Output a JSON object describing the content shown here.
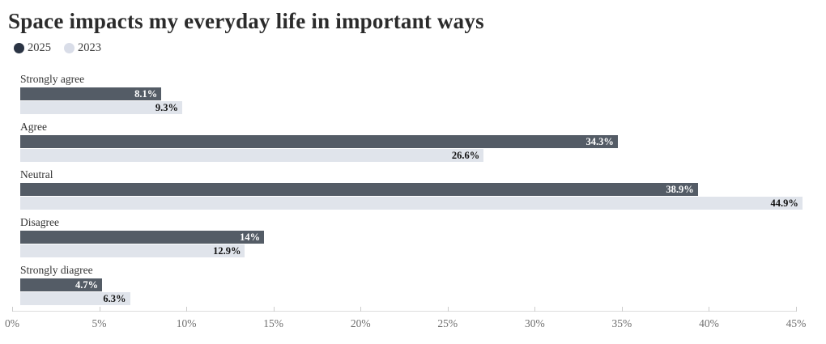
{
  "title": "Space impacts my everyday life in important ways",
  "legend": {
    "items": [
      {
        "label": "2025",
        "color": "#2b3444"
      },
      {
        "label": "2023",
        "color": "#d9dde8"
      }
    ]
  },
  "colors": {
    "bar_2025": "#545c66",
    "bar_2023": "#e0e4eb",
    "value_label_2025": "#ffffff",
    "value_label_2023": "#111111",
    "axis_line": "#dddddd",
    "axis_text": "#6f6f6f",
    "title_text": "#2b2b2b"
  },
  "chart_data": {
    "type": "bar",
    "orientation": "horizontal",
    "title": "Space impacts my everyday life in important ways",
    "categories": [
      "Strongly agree",
      "Agree",
      "Neutral",
      "Disagree",
      "Strongly diagree"
    ],
    "series": [
      {
        "name": "2025",
        "color": "#545c66",
        "values": [
          8.1,
          34.3,
          38.9,
          14,
          4.7
        ],
        "labels": [
          "8.1%",
          "34.3%",
          "38.9%",
          "14%",
          "4.7%"
        ]
      },
      {
        "name": "2023",
        "color": "#e0e4eb",
        "values": [
          9.3,
          26.6,
          44.9,
          12.9,
          6.3
        ],
        "labels": [
          "9.3%",
          "26.6%",
          "44.9%",
          "12.9%",
          "6.3%"
        ]
      }
    ],
    "xlabel": "",
    "ylabel": "",
    "xlim": [
      0,
      45
    ],
    "x_tick_values": [
      0,
      5,
      10,
      15,
      20,
      25,
      30,
      35,
      40,
      45
    ],
    "x_tick_labels": [
      "0%",
      "5%",
      "10%",
      "15%",
      "20%",
      "25%",
      "30%",
      "35%",
      "40%",
      "45%"
    ],
    "grid": false,
    "legend_position": "top-left",
    "value_labels_inside_bars": true
  }
}
